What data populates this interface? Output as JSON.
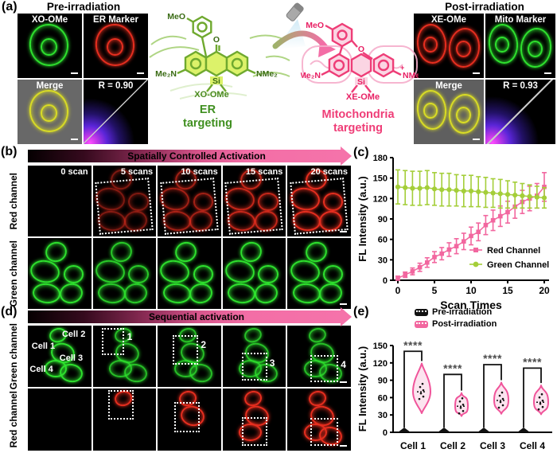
{
  "figure": {
    "panel_labels": {
      "a": "(a)",
      "b": "(b)",
      "c": "(c)",
      "d": "(d)",
      "e": "(e)"
    }
  },
  "panel_a": {
    "pre": {
      "title": "Pre-irradiation",
      "p1": "XO-OMe",
      "p2": "ER Marker",
      "p3": "Merge",
      "p4": "R = 0.90"
    },
    "post": {
      "title": "Post-irradiation",
      "p1": "XE-OMe",
      "p2": "Mito Marker",
      "p3": "Merge",
      "p4": "R = 0.93"
    },
    "molecule_green": {
      "substituent_top": "MeO",
      "carbonyl": "O",
      "amine_left": "Me₂N",
      "core": "Si",
      "amine_right": "NMe₂",
      "name": "XO-OMe",
      "target_line1": "ER",
      "target_line2": "targeting"
    },
    "molecule_pink": {
      "substituent_top": "MeO",
      "ether": "O",
      "amine_left": "Me₂N",
      "core": "Si",
      "charge": "+",
      "amine_right": "NMe₂",
      "name": "XE-OMe",
      "target_line1": "Mitochondria",
      "target_line2": "targeting"
    }
  },
  "panel_b": {
    "arrow_title": "Spatially Controlled Activation",
    "row_labels": [
      "Red channel",
      "Green channel"
    ],
    "columns": [
      "0 scan",
      "5 scans",
      "10 scans",
      "15 scans",
      "20 scans"
    ]
  },
  "panel_d": {
    "arrow_title": "Sequential activation",
    "row_labels": [
      "Green channel",
      "Red channel"
    ],
    "cell_labels": [
      "Cell 1",
      "Cell 2",
      "Cell 3",
      "Cell 4"
    ],
    "box_numbers": [
      "1",
      "2",
      "3",
      "4"
    ]
  },
  "colors": {
    "pink_series": "#F2679F",
    "green_series": "#A4CE39",
    "structure_green": "#6FA92F",
    "structure_pink": "#EE3D77",
    "target_green": "#3F8F1F",
    "target_pink": "#EF3D77",
    "pre_violin": "#111111"
  },
  "chart_data": [
    {
      "type": "line",
      "panel": "c",
      "x": [
        0,
        1,
        2,
        3,
        4,
        5,
        6,
        7,
        8,
        9,
        10,
        11,
        12,
        13,
        14,
        15,
        16,
        17,
        18,
        19,
        20
      ],
      "series": [
        {
          "name": "Red Channel",
          "color": "#F2679F",
          "marker": "square",
          "values": [
            3,
            8,
            13,
            19,
            26,
            34,
            39,
            45,
            50,
            57,
            65,
            71,
            81,
            88,
            94,
            100,
            108,
            115,
            120,
            124,
            137
          ],
          "errors": [
            3,
            4,
            5,
            6,
            7,
            8,
            9,
            10,
            11,
            12,
            13,
            13,
            14,
            15,
            15,
            16,
            17,
            17,
            18,
            18,
            21
          ]
        },
        {
          "name": "Green Channel",
          "color": "#A4CE39",
          "marker": "circle",
          "values": [
            137,
            136,
            135,
            135,
            136,
            134,
            133,
            133,
            132,
            131,
            131,
            130,
            129,
            128,
            127,
            126,
            125,
            124,
            123,
            122,
            121
          ],
          "errors": [
            25,
            25,
            25,
            25,
            25,
            24,
            24,
            24,
            23,
            23,
            23,
            22,
            22,
            21,
            21,
            20,
            19,
            18,
            17,
            16,
            15
          ]
        }
      ],
      "xlabel": "Scan Times",
      "ylabel": "FL Intensity (a.u.)",
      "ylim": [
        0,
        180
      ],
      "yticks": [
        0,
        30,
        60,
        90,
        120,
        150,
        180
      ],
      "xticks": [
        0,
        5,
        10,
        15,
        20
      ],
      "legend_position": "lower right",
      "grid": false
    },
    {
      "type": "violin",
      "panel": "e",
      "categories": [
        "Cell 1",
        "Cell 2",
        "Cell 3",
        "Cell 4"
      ],
      "series": [
        {
          "name": "Pre-irradiation",
          "color": "#111111",
          "max_values": [
            4,
            4,
            4,
            4
          ]
        },
        {
          "name": "Post-irradiation",
          "color": "#F2679F",
          "min": [
            33,
            28,
            32,
            31
          ],
          "median": [
            70,
            45,
            55,
            52
          ],
          "max": [
            119,
            68,
            86,
            81
          ]
        }
      ],
      "significance": {
        "label": "****",
        "bracket_top": [
          140,
          100,
          117,
          111
        ]
      },
      "ylabel": "FL Intensity (a.u.)",
      "ylim": [
        0,
        150
      ],
      "yticks": [
        0,
        30,
        60,
        90,
        120,
        150
      ],
      "legend_position": "upper right",
      "grid": false
    }
  ]
}
